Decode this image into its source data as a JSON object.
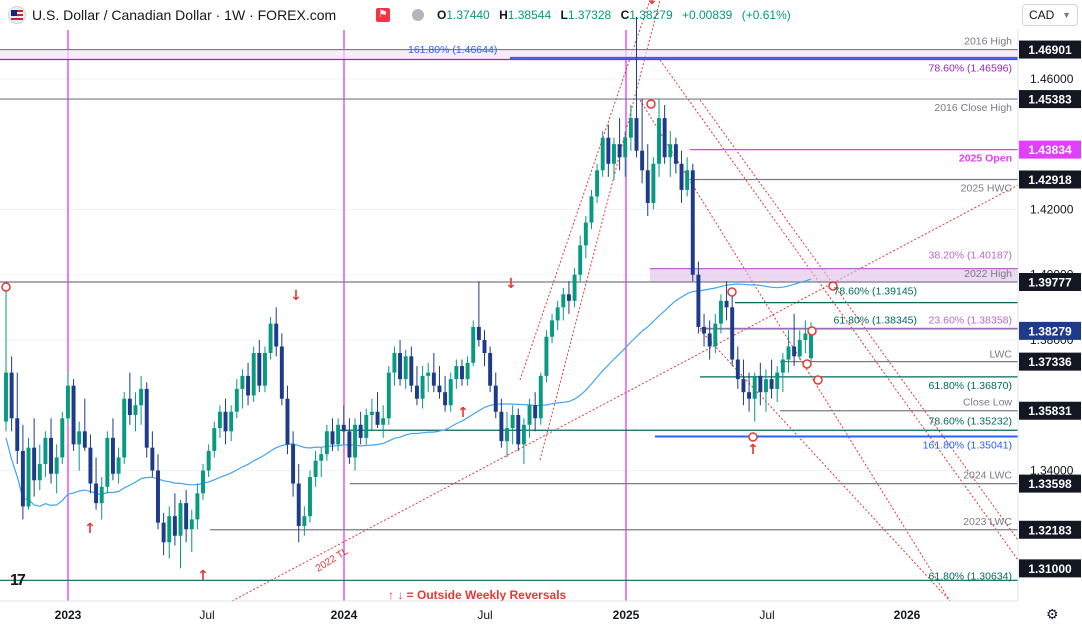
{
  "header": {
    "title": "U.S. Dollar / Canadian Dollar · 1W · FOREX.com",
    "open_label": "O",
    "open": "1.37440",
    "high_label": "H",
    "high": "1.38544",
    "low_label": "L",
    "low": "1.37328",
    "close_label": "C",
    "close": "1.38279",
    "change": "+0.00839",
    "change_pct": "(+0.61%)",
    "currency": "CAD",
    "sell_icon": "flag-icon",
    "colors": {
      "up": "#089981",
      "down": "#1e3a8a",
      "text": "#131722"
    }
  },
  "chart_data": {
    "type": "candlestick",
    "title": "U.S. Dollar / Canadian Dollar · 1W · FOREX.com",
    "ylim": [
      1.3,
      1.475
    ],
    "x_ticks": [
      "2023",
      "Jul",
      "2024",
      "Jul",
      "2025",
      "Jul",
      "2026"
    ],
    "y_ticks": [
      "1.46000",
      "1.42000",
      "1.40000",
      "1.38000",
      "1.34000"
    ],
    "price_labels": [
      {
        "value": 1.46901,
        "text": "1.46901",
        "style": "grey"
      },
      {
        "value": 1.45383,
        "text": "1.45383",
        "style": "grey"
      },
      {
        "value": 1.43834,
        "text": "1.43834",
        "style": "magenta"
      },
      {
        "value": 1.42918,
        "text": "1.42918",
        "style": "grey"
      },
      {
        "value": 1.39777,
        "text": "1.39777",
        "style": "grey"
      },
      {
        "value": 1.38279,
        "text": "1.38279",
        "style": "blue"
      },
      {
        "value": 1.37336,
        "text": "1.37336",
        "style": "grey"
      },
      {
        "value": 1.35831,
        "text": "1.35831",
        "style": "grey"
      },
      {
        "value": 1.33598,
        "text": "1.33598",
        "style": "grey"
      },
      {
        "value": 1.32183,
        "text": "1.32183",
        "style": "grey"
      },
      {
        "value": 1.31,
        "text": "1.31000",
        "style": "grey"
      }
    ],
    "levels": [
      {
        "value": 1.46901,
        "label": "2016 High",
        "color": "#787b86"
      },
      {
        "value": 1.46644,
        "label": "161.80% (1.46644)",
        "color": "#2962ff"
      },
      {
        "value": 1.46596,
        "label": "78.60% (1.46596)",
        "color": "#9c27b0"
      },
      {
        "value": 1.45383,
        "label": "2016 Close High",
        "color": "#787b86"
      },
      {
        "value": 1.43834,
        "label": "2025 Open",
        "color": "#e040fb"
      },
      {
        "value": 1.42918,
        "label": "2025 HWC",
        "color": "#787b86"
      },
      {
        "value": 1.40187,
        "label": "38.20% (1.40187)",
        "color": "#ba68c8"
      },
      {
        "value": 1.39777,
        "label": "2022 High",
        "color": "#787b86"
      },
      {
        "value": 1.39145,
        "label": "78.60% (1.39145)",
        "color": "#00695c"
      },
      {
        "value": 1.38345,
        "label": "61.80% (1.38345)",
        "color": "#00695c"
      },
      {
        "value": 1.38358,
        "label": "23.60% (1.38358)",
        "color": "#ba68c8"
      },
      {
        "value": 1.37336,
        "label": "LWC",
        "color": "#787b86"
      },
      {
        "value": 1.3687,
        "label": "61.80% (1.36870)",
        "color": "#00695c"
      },
      {
        "value": 1.35831,
        "label": "Close Low",
        "color": "#787b86"
      },
      {
        "value": 1.35232,
        "label": "78.60% (1.35232)",
        "color": "#00695c"
      },
      {
        "value": 1.35041,
        "label": "161.80% (1.35041)",
        "color": "#2962ff"
      },
      {
        "value": 1.33598,
        "label": "2024 LWC",
        "color": "#787b86"
      },
      {
        "value": 1.32183,
        "label": "2023 LWC",
        "color": "#787b86"
      },
      {
        "value": 1.30634,
        "label": "61.80% (1.30634)",
        "color": "#00695c"
      }
    ],
    "annotations": [
      "↑ ↓ = Outside Weekly Reversals",
      "2022 TL"
    ],
    "series": [
      {
        "values": [
          [
            1.355,
            1.398,
            1.352,
            1.37
          ],
          [
            1.37,
            1.375,
            1.352,
            1.356
          ],
          [
            1.356,
            1.37,
            1.342,
            1.346
          ],
          [
            1.346,
            1.354,
            1.325,
            1.329
          ],
          [
            1.329,
            1.35,
            1.328,
            1.347
          ],
          [
            1.347,
            1.356,
            1.332,
            1.337
          ],
          [
            1.337,
            1.348,
            1.334,
            1.342
          ],
          [
            1.342,
            1.352,
            1.338,
            1.35
          ],
          [
            1.35,
            1.356,
            1.336,
            1.339
          ],
          [
            1.339,
            1.348,
            1.333,
            1.344
          ],
          [
            1.344,
            1.358,
            1.342,
            1.356
          ],
          [
            1.356,
            1.37,
            1.354,
            1.366
          ],
          [
            1.366,
            1.368,
            1.346,
            1.348
          ],
          [
            1.348,
            1.355,
            1.34,
            1.352
          ],
          [
            1.352,
            1.362,
            1.346,
            1.347
          ],
          [
            1.347,
            1.351,
            1.333,
            1.336
          ],
          [
            1.336,
            1.344,
            1.328,
            1.33
          ],
          [
            1.33,
            1.338,
            1.325,
            1.335
          ],
          [
            1.335,
            1.352,
            1.333,
            1.35
          ],
          [
            1.35,
            1.356,
            1.337,
            1.339
          ],
          [
            1.339,
            1.347,
            1.336,
            1.344
          ],
          [
            1.344,
            1.364,
            1.342,
            1.362
          ],
          [
            1.362,
            1.37,
            1.354,
            1.357
          ],
          [
            1.357,
            1.364,
            1.352,
            1.36
          ],
          [
            1.36,
            1.369,
            1.354,
            1.365
          ],
          [
            1.365,
            1.367,
            1.344,
            1.347
          ],
          [
            1.347,
            1.352,
            1.338,
            1.34
          ],
          [
            1.34,
            1.345,
            1.322,
            1.324
          ],
          [
            1.324,
            1.327,
            1.314,
            1.318
          ],
          [
            1.318,
            1.329,
            1.313,
            1.326
          ],
          [
            1.326,
            1.333,
            1.317,
            1.32
          ],
          [
            1.32,
            1.331,
            1.31,
            1.33
          ],
          [
            1.33,
            1.334,
            1.318,
            1.322
          ],
          [
            1.322,
            1.328,
            1.315,
            1.325
          ],
          [
            1.325,
            1.336,
            1.322,
            1.333
          ],
          [
            1.333,
            1.342,
            1.331,
            1.34
          ],
          [
            1.34,
            1.348,
            1.338,
            1.346
          ],
          [
            1.346,
            1.355,
            1.344,
            1.353
          ],
          [
            1.353,
            1.36,
            1.35,
            1.358
          ],
          [
            1.358,
            1.362,
            1.348,
            1.352
          ],
          [
            1.352,
            1.36,
            1.349,
            1.358
          ],
          [
            1.358,
            1.368,
            1.356,
            1.365
          ],
          [
            1.365,
            1.371,
            1.359,
            1.369
          ],
          [
            1.369,
            1.373,
            1.36,
            1.363
          ],
          [
            1.363,
            1.378,
            1.361,
            1.376
          ],
          [
            1.376,
            1.38,
            1.364,
            1.366
          ],
          [
            1.366,
            1.378,
            1.364,
            1.376
          ],
          [
            1.376,
            1.387,
            1.374,
            1.385
          ],
          [
            1.385,
            1.39,
            1.375,
            1.378
          ],
          [
            1.378,
            1.382,
            1.36,
            1.362
          ],
          [
            1.362,
            1.366,
            1.345,
            1.348
          ],
          [
            1.348,
            1.352,
            1.332,
            1.336
          ],
          [
            1.336,
            1.342,
            1.318,
            1.323
          ],
          [
            1.323,
            1.329,
            1.32,
            1.326
          ],
          [
            1.326,
            1.34,
            1.324,
            1.338
          ],
          [
            1.338,
            1.346,
            1.335,
            1.343
          ],
          [
            1.343,
            1.347,
            1.338,
            1.345
          ],
          [
            1.345,
            1.354,
            1.343,
            1.352
          ],
          [
            1.352,
            1.356,
            1.346,
            1.348
          ],
          [
            1.348,
            1.356,
            1.346,
            1.354
          ],
          [
            1.354,
            1.36,
            1.348,
            1.352
          ],
          [
            1.352,
            1.356,
            1.342,
            1.344
          ],
          [
            1.344,
            1.356,
            1.34,
            1.354
          ],
          [
            1.354,
            1.358,
            1.348,
            1.35
          ],
          [
            1.35,
            1.359,
            1.348,
            1.357
          ],
          [
            1.357,
            1.362,
            1.352,
            1.358
          ],
          [
            1.358,
            1.364,
            1.353,
            1.354
          ],
          [
            1.354,
            1.36,
            1.35,
            1.356
          ],
          [
            1.356,
            1.372,
            1.354,
            1.37
          ],
          [
            1.37,
            1.378,
            1.366,
            1.376
          ],
          [
            1.376,
            1.38,
            1.366,
            1.368
          ],
          [
            1.368,
            1.377,
            1.365,
            1.375
          ],
          [
            1.375,
            1.378,
            1.364,
            1.366
          ],
          [
            1.366,
            1.372,
            1.36,
            1.362
          ],
          [
            1.362,
            1.372,
            1.359,
            1.369
          ],
          [
            1.369,
            1.373,
            1.364,
            1.37
          ],
          [
            1.37,
            1.376,
            1.364,
            1.366
          ],
          [
            1.366,
            1.372,
            1.362,
            1.364
          ],
          [
            1.364,
            1.369,
            1.358,
            1.36
          ],
          [
            1.36,
            1.37,
            1.358,
            1.368
          ],
          [
            1.368,
            1.374,
            1.365,
            1.372
          ],
          [
            1.372,
            1.374,
            1.366,
            1.368
          ],
          [
            1.368,
            1.375,
            1.366,
            1.373
          ],
          [
            1.373,
            1.386,
            1.372,
            1.384
          ],
          [
            1.384,
            1.398,
            1.378,
            1.38
          ],
          [
            1.38,
            1.383,
            1.372,
            1.376
          ],
          [
            1.376,
            1.378,
            1.364,
            1.366
          ],
          [
            1.366,
            1.37,
            1.356,
            1.358
          ],
          [
            1.358,
            1.362,
            1.347,
            1.349
          ],
          [
            1.349,
            1.358,
            1.344,
            1.353
          ],
          [
            1.353,
            1.36,
            1.348,
            1.357
          ],
          [
            1.357,
            1.359,
            1.346,
            1.348
          ],
          [
            1.348,
            1.356,
            1.342,
            1.354
          ],
          [
            1.354,
            1.362,
            1.35,
            1.36
          ],
          [
            1.36,
            1.364,
            1.352,
            1.356
          ],
          [
            1.356,
            1.37,
            1.354,
            1.369
          ],
          [
            1.369,
            1.383,
            1.367,
            1.381
          ],
          [
            1.381,
            1.388,
            1.379,
            1.386
          ],
          [
            1.386,
            1.392,
            1.383,
            1.39
          ],
          [
            1.39,
            1.396,
            1.386,
            1.394
          ],
          [
            1.394,
            1.398,
            1.388,
            1.392
          ],
          [
            1.392,
            1.402,
            1.39,
            1.4
          ],
          [
            1.4,
            1.412,
            1.398,
            1.409
          ],
          [
            1.409,
            1.418,
            1.405,
            1.416
          ],
          [
            1.416,
            1.426,
            1.414,
            1.424
          ],
          [
            1.424,
            1.434,
            1.422,
            1.432
          ],
          [
            1.432,
            1.444,
            1.43,
            1.442
          ],
          [
            1.442,
            1.446,
            1.43,
            1.434
          ],
          [
            1.434,
            1.442,
            1.429,
            1.44
          ],
          [
            1.44,
            1.448,
            1.432,
            1.436
          ],
          [
            1.436,
            1.444,
            1.43,
            1.442
          ],
          [
            1.442,
            1.452,
            1.438,
            1.448
          ],
          [
            1.448,
            1.479,
            1.436,
            1.438
          ],
          [
            1.438,
            1.454,
            1.428,
            1.432
          ],
          [
            1.432,
            1.44,
            1.418,
            1.422
          ],
          [
            1.422,
            1.436,
            1.42,
            1.434
          ],
          [
            1.434,
            1.454,
            1.43,
            1.448
          ],
          [
            1.448,
            1.452,
            1.434,
            1.436
          ],
          [
            1.436,
            1.444,
            1.43,
            1.44
          ],
          [
            1.44,
            1.442,
            1.431,
            1.434
          ],
          [
            1.434,
            1.438,
            1.422,
            1.426
          ],
          [
            1.426,
            1.436,
            1.424,
            1.432
          ],
          [
            1.432,
            1.434,
            1.398,
            1.4
          ],
          [
            1.4,
            1.404,
            1.382,
            1.384
          ],
          [
            1.384,
            1.388,
            1.378,
            1.382
          ],
          [
            1.382,
            1.386,
            1.374,
            1.378
          ],
          [
            1.378,
            1.388,
            1.376,
            1.385
          ],
          [
            1.385,
            1.394,
            1.382,
            1.392
          ],
          [
            1.392,
            1.398,
            1.386,
            1.39
          ],
          [
            1.39,
            1.394,
            1.372,
            1.374
          ],
          [
            1.374,
            1.378,
            1.365,
            1.368
          ],
          [
            1.368,
            1.374,
            1.36,
            1.364
          ],
          [
            1.364,
            1.37,
            1.358,
            1.362
          ],
          [
            1.362,
            1.37,
            1.355,
            1.369
          ],
          [
            1.369,
            1.373,
            1.36,
            1.364
          ],
          [
            1.364,
            1.371,
            1.358,
            1.368
          ],
          [
            1.368,
            1.374,
            1.362,
            1.365
          ],
          [
            1.365,
            1.372,
            1.361,
            1.37
          ],
          [
            1.37,
            1.376,
            1.364,
            1.374
          ],
          [
            1.374,
            1.383,
            1.37,
            1.378
          ],
          [
            1.378,
            1.388,
            1.372,
            1.375
          ],
          [
            1.375,
            1.383,
            1.374,
            1.38
          ],
          [
            1.38,
            1.386,
            1.376,
            1.382
          ],
          [
            1.3744,
            1.38544,
            1.37328,
            1.38279
          ]
        ]
      },
      {
        "name": "",
        "values": []
      }
    ]
  },
  "footer": {
    "tv_logo": "tradingview-logo-icon",
    "settings_icon": "gear-icon"
  }
}
